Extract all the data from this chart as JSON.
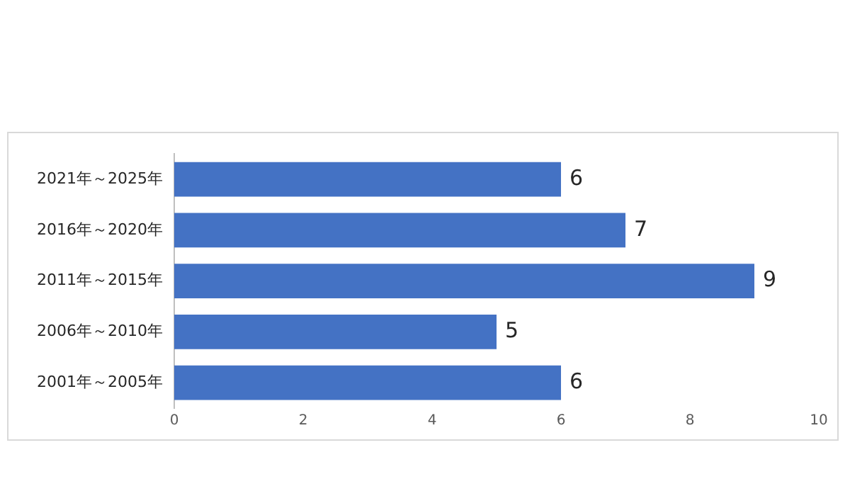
{
  "chart_data": {
    "type": "bar",
    "orientation": "horizontal",
    "categories": [
      "2021年～2025年",
      "2016年～2020年",
      "2011年～2015年",
      "2006年～2010年",
      "2001年～2005年"
    ],
    "values": [
      6,
      7,
      9,
      5,
      6
    ],
    "color": "#4472c4",
    "xlim": [
      0,
      10
    ],
    "xticks": [
      0,
      2,
      4,
      6,
      8,
      10
    ],
    "grid": false,
    "legend": false,
    "data_labels": true
  }
}
